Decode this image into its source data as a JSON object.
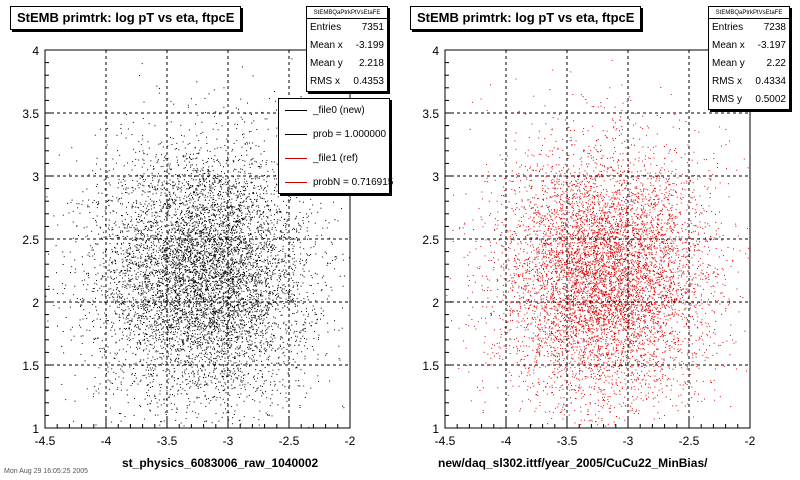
{
  "chart_data": [
    {
      "type": "scatter",
      "title": "StEMB primtrk: log pT vs eta, ftpcE",
      "xlabel": "st_physics_6083006_raw_1040002",
      "xlim": [
        -4.5,
        -2
      ],
      "ylim": [
        1,
        4
      ],
      "xticks": [
        "-4.5",
        "-4",
        "-3.5",
        "-3",
        "-2.5",
        "-2"
      ],
      "yticks": [
        "1",
        "1.5",
        "2",
        "2.5",
        "3",
        "3.5",
        "4"
      ],
      "grid": true,
      "marker_color": "#000000",
      "distribution": {
        "n_points": 7351,
        "mean_x": -3.199,
        "mean_y": 2.218,
        "rms_x": 0.4353
      },
      "stats": {
        "name": "StEMBQaPtrkPtVsEtaFE",
        "rows": [
          {
            "label": "Entries",
            "value": "7351"
          },
          {
            "label": "Mean x",
            "value": "-3.199"
          },
          {
            "label": "Mean y",
            "value": "2.218"
          },
          {
            "label": "RMS x",
            "value": "0.4353"
          }
        ]
      },
      "legend": {
        "position": "top-right",
        "entries": [
          {
            "label": "_file0 (new)",
            "color": "#000000"
          },
          {
            "label": "prob = 1.000000",
            "color": "#000000"
          },
          {
            "label": "_file1 (ref)",
            "color": "#cc0000"
          },
          {
            "label": "probN = 0.716915",
            "color": "#cc0000"
          }
        ]
      }
    },
    {
      "type": "scatter",
      "title": "StEMB primtrk: log pT vs eta, ftpcE",
      "xlabel": "new/daq_sl302.ittf/year_2005/CuCu22_MinBias/",
      "xlim": [
        -4.5,
        -2
      ],
      "ylim": [
        1,
        4
      ],
      "xticks": [
        "-4.5",
        "-4",
        "-3.5",
        "-3",
        "-2.5",
        "-2"
      ],
      "yticks": [
        "1",
        "1.5",
        "2",
        "2.5",
        "3",
        "3.5",
        "4"
      ],
      "grid": true,
      "marker_color": "#dd0000",
      "distribution": {
        "n_points": 7238,
        "mean_x": -3.197,
        "mean_y": 2.22,
        "rms_x": 0.4334,
        "rms_y": 0.5002
      },
      "stats": {
        "name": "StEMBQaPtrkPtVsEtaFE",
        "rows": [
          {
            "label": "Entries",
            "value": "7238"
          },
          {
            "label": "Mean x",
            "value": "-3.197"
          },
          {
            "label": "Mean y",
            "value": "2.22"
          },
          {
            "label": "RMS x",
            "value": "0.4334"
          },
          {
            "label": "RMS y",
            "value": "0.5002"
          }
        ]
      }
    }
  ],
  "footer": "Mon Aug 29 16:05:25 2005"
}
